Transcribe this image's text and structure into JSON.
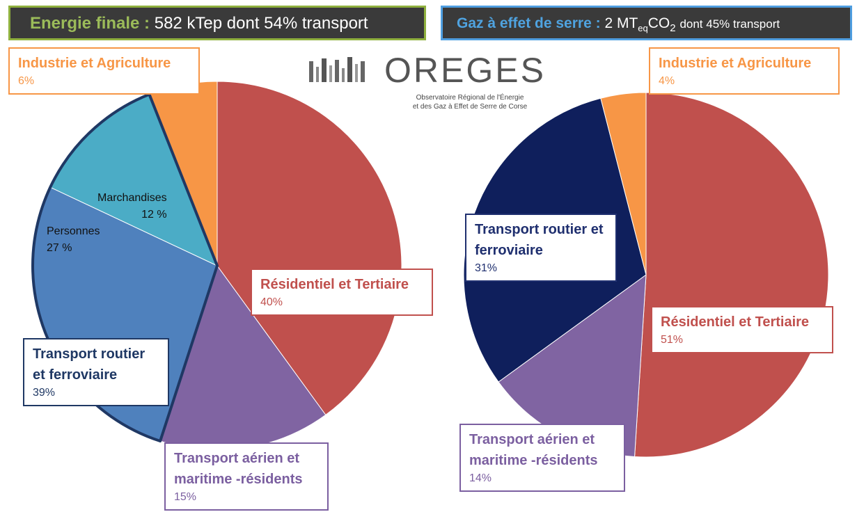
{
  "header": {
    "left": {
      "title": "Energie finale :",
      "text": "582 kTep dont 54% transport"
    },
    "right": {
      "title": "Gaz à effet de serre :",
      "text_parts": [
        "2 MT",
        "eq",
        "CO",
        "2",
        "dont 45% transport"
      ]
    }
  },
  "logo": {
    "name": "OREGES",
    "subtitle_lines": [
      "Observatoire Régional de l'Énergie",
      "et des Gaz à Effet de Serre de Corse"
    ]
  },
  "chart_data": [
    {
      "type": "pie",
      "categories": [
        "Résidentiel et Tertiaire",
        "Transport aérien et maritime -résidents",
        "Personnes",
        "Marchandises",
        "Industrie et Agriculture"
      ],
      "values": [
        40,
        15,
        27,
        12,
        6
      ],
      "value_labels": [
        "40%",
        "15%",
        "27 %",
        "12 %",
        "6%"
      ],
      "colors": [
        "#c0504d",
        "#8064a2",
        "#4f81bd",
        "#4bacc6",
        "#f79646"
      ],
      "group": {
        "name": "Transport routier et ferroviaire",
        "value": 39,
        "value_label": "39%",
        "color": "#1f3864"
      }
    },
    {
      "type": "pie",
      "categories": [
        "Résidentiel et Tertiaire",
        "Transport aérien et maritime -résidents",
        "Transport routier et ferroviaire",
        "Industrie et Agriculture"
      ],
      "values": [
        51,
        14,
        31,
        4
      ],
      "value_labels": [
        "51%",
        "14%",
        "31%",
        "4%"
      ],
      "colors": [
        "#c0504d",
        "#8064a2",
        "#0f1f5c",
        "#f79646"
      ]
    }
  ]
}
